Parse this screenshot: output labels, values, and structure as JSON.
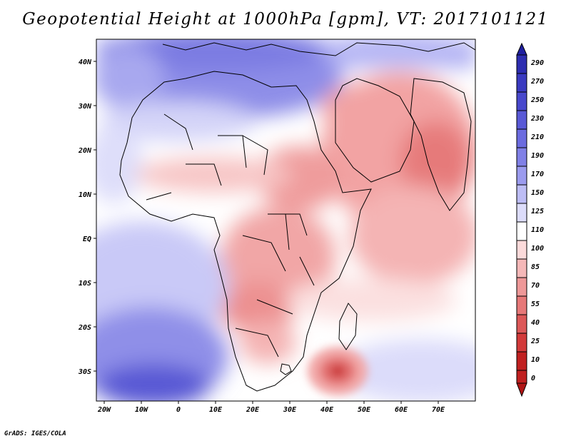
{
  "title": "Geopotential Height at 1000hPa [gpm], VT: 2017101121",
  "credit": "GrADS: IGES/COLA",
  "map": {
    "lat_labels": [
      "40N",
      "30N",
      "20N",
      "10N",
      "EQ",
      "10S",
      "20S",
      "30S"
    ],
    "lon_labels": [
      "20W",
      "10W",
      "0",
      "10E",
      "20E",
      "30E",
      "40E",
      "50E",
      "60E",
      "70E"
    ],
    "extent": {
      "lon": [
        -22,
        79
      ],
      "lat": [
        -37,
        46
      ]
    },
    "features": {
      "high_pressure_cell_center": {
        "lon": 43,
        "lat": -30
      },
      "lowest_heights_region": "India / Arabian Sea",
      "highest_heights_region": "South Atlantic near 10W 35S"
    }
  },
  "colorbar": {
    "levels": [
      "290",
      "270",
      "250",
      "230",
      "210",
      "190",
      "170",
      "150",
      "125",
      "110",
      "100",
      "85",
      "70",
      "55",
      "40",
      "25",
      "10",
      "0"
    ],
    "colors": [
      "#1f1fa0",
      "#2d2db0",
      "#3a3ac0",
      "#4848cc",
      "#5959d6",
      "#6b6bdf",
      "#8080e6",
      "#9b9bee",
      "#bdbdf5",
      "#dcdcfa",
      "#ffffff",
      "#fbdada",
      "#f5b8b8",
      "#ee9898",
      "#e67878",
      "#dc5858",
      "#d23a3a",
      "#c02020",
      "#b01515"
    ]
  }
}
